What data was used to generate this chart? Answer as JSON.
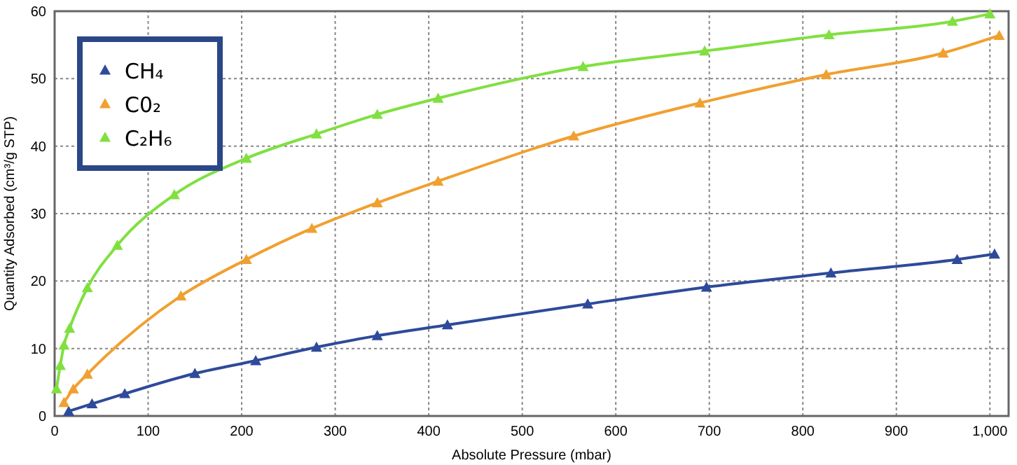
{
  "chart_data": {
    "type": "line",
    "xlabel": "Absolute Pressure (mbar)",
    "ylabel": "Quantity Adsorbed (cm³/g STP)",
    "xlim": [
      0,
      1020
    ],
    "ylim": [
      0,
      60
    ],
    "xticks": [
      0,
      100,
      200,
      300,
      400,
      500,
      600,
      700,
      800,
      900,
      {
        "value": 1000,
        "label": "1,000"
      }
    ],
    "yticks": [
      0,
      10,
      20,
      30,
      40,
      50,
      60
    ],
    "grid": true,
    "legend": "top left",
    "marker": "triangle",
    "line_style": "solid",
    "series": [
      {
        "name": "CH₄",
        "color": "#2e4a9a",
        "x": [
          15,
          40,
          75,
          150,
          215,
          280,
          345,
          420,
          570,
          697,
          830,
          965,
          1005
        ],
        "values": [
          0.7,
          1.8,
          3.3,
          6.3,
          8.2,
          10.2,
          11.9,
          13.5,
          16.6,
          19.1,
          21.2,
          23.2,
          24.0
        ]
      },
      {
        "name": "C0₂",
        "color": "#f0a030",
        "x": [
          10,
          20,
          35,
          135,
          205,
          275,
          345,
          410,
          555,
          690,
          825,
          950,
          1010
        ],
        "values": [
          2,
          4,
          6.2,
          17.8,
          23.2,
          27.8,
          31.6,
          34.8,
          41.5,
          46.4,
          50.6,
          53.8,
          56.4
        ]
      },
      {
        "name": "C₂H₆",
        "color": "#80e040",
        "x": [
          2,
          6,
          10,
          16,
          35,
          67,
          128,
          205,
          280,
          345,
          410,
          565,
          695,
          828,
          960,
          1000
        ],
        "values": [
          4,
          7.5,
          10.5,
          13,
          19,
          25.3,
          32.8,
          38.2,
          41.8,
          44.7,
          47.1,
          51.8,
          54.1,
          56.5,
          58.5,
          59.6
        ]
      }
    ]
  }
}
